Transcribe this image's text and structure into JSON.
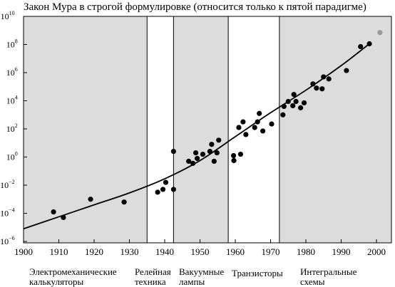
{
  "chart_data": {
    "type": "scatter",
    "title": "Закон Мура в строгой формулировке (относится только к пятой парадигме)",
    "xlim": [
      1900,
      2000
    ],
    "ylim_exp": [
      -6,
      10
    ],
    "y_scale": "log10",
    "x_ticks": [
      "1900",
      "1910",
      "1920",
      "1930",
      "1940",
      "1950",
      "1960",
      "1970",
      "1980",
      "1990",
      "2000"
    ],
    "y_ticks": [
      {
        "exp": -6,
        "base": "10",
        "sup": "−6"
      },
      {
        "exp": -4,
        "base": "10",
        "sup": "−4"
      },
      {
        "exp": -2,
        "base": "10",
        "sup": "−2"
      },
      {
        "exp": 0,
        "base": "10",
        "sup": "0"
      },
      {
        "exp": 2,
        "base": "10",
        "sup": "2"
      },
      {
        "exp": 4,
        "base": "10",
        "sup": "4"
      },
      {
        "exp": 6,
        "base": "10",
        "sup": "6"
      },
      {
        "exp": 8,
        "base": "10",
        "sup": "8"
      },
      {
        "exp": 10,
        "base": "10",
        "sup": "10"
      }
    ],
    "eras": [
      {
        "label_line1": "Электромеханические",
        "label_line2": "калькуляторы",
        "x_start": 1900,
        "x_end": 1935,
        "shaded": true
      },
      {
        "label_line1": "Релейная",
        "label_line2": "техника",
        "x_start": 1935,
        "x_end": 1942.5,
        "shaded": false
      },
      {
        "label_line1": "Вакуумные",
        "label_line2": "лампы",
        "x_start": 1942.5,
        "x_end": 1958,
        "shaded": true
      },
      {
        "label_line1": "Транзисторы",
        "label_line2": "",
        "x_start": 1958,
        "x_end": 1972.5,
        "shaded": false
      },
      {
        "label_line1": "Интегральные",
        "label_line2": "схемы",
        "x_start": 1972.5,
        "x_end": 2005,
        "shaded": true
      }
    ],
    "points": [
      {
        "x": 1908.5,
        "y": -3.9
      },
      {
        "x": 1911.3,
        "y": -4.3
      },
      {
        "x": 1919,
        "y": -3.0
      },
      {
        "x": 1928.5,
        "y": -3.2
      },
      {
        "x": 1938,
        "y": -2.5
      },
      {
        "x": 1939.5,
        "y": -2.3
      },
      {
        "x": 1940.3,
        "y": -1.8
      },
      {
        "x": 1942.5,
        "y": 0.4
      },
      {
        "x": 1942.5,
        "y": -2.3
      },
      {
        "x": 1946.8,
        "y": -0.3
      },
      {
        "x": 1948,
        "y": -0.45
      },
      {
        "x": 1948.8,
        "y": 0.3
      },
      {
        "x": 1949.2,
        "y": -0.1
      },
      {
        "x": 1950.8,
        "y": 0.2
      },
      {
        "x": 1952.8,
        "y": 0.4
      },
      {
        "x": 1953.3,
        "y": 0.9
      },
      {
        "x": 1954,
        "y": -0.3
      },
      {
        "x": 1954.8,
        "y": 0.3
      },
      {
        "x": 1955.3,
        "y": 1.2
      },
      {
        "x": 1959.5,
        "y": 0.1
      },
      {
        "x": 1959.6,
        "y": -0.25
      },
      {
        "x": 1961,
        "y": 2.1
      },
      {
        "x": 1961.5,
        "y": 0.2
      },
      {
        "x": 1962.2,
        "y": 2.5
      },
      {
        "x": 1963,
        "y": 1.6
      },
      {
        "x": 1965.5,
        "y": 2.1
      },
      {
        "x": 1966.3,
        "y": 2.5
      },
      {
        "x": 1966.8,
        "y": 3.1
      },
      {
        "x": 1967.8,
        "y": 1.85
      },
      {
        "x": 1970.3,
        "y": 2.35
      },
      {
        "x": 1973.5,
        "y": 3.0
      },
      {
        "x": 1973.8,
        "y": 3.6
      },
      {
        "x": 1975,
        "y": 3.95
      },
      {
        "x": 1976.3,
        "y": 3.65
      },
      {
        "x": 1976.6,
        "y": 4.45
      },
      {
        "x": 1977.2,
        "y": 3.95
      },
      {
        "x": 1978.5,
        "y": 3.5
      },
      {
        "x": 1979.5,
        "y": 3.85
      },
      {
        "x": 1982,
        "y": 5.2
      },
      {
        "x": 1983,
        "y": 4.9
      },
      {
        "x": 1984.6,
        "y": 4.85
      },
      {
        "x": 1985,
        "y": 5.7
      },
      {
        "x": 1986.5,
        "y": 5.55
      },
      {
        "x": 1991.5,
        "y": 6.15
      },
      {
        "x": 1995.5,
        "y": 7.85
      },
      {
        "x": 1998,
        "y": 8.05
      },
      {
        "x": 2001,
        "y": 8.85,
        "projected": true
      }
    ],
    "trend": [
      [
        1900,
        -5.1
      ],
      [
        1910,
        -4.25
      ],
      [
        1920,
        -3.4
      ],
      [
        1930,
        -2.55
      ],
      [
        1940,
        -1.55
      ],
      [
        1950,
        -0.25
      ],
      [
        1960,
        1.45
      ],
      [
        1970,
        3.15
      ],
      [
        1980,
        4.75
      ],
      [
        1990,
        6.5
      ],
      [
        1998,
        8.05
      ]
    ]
  }
}
